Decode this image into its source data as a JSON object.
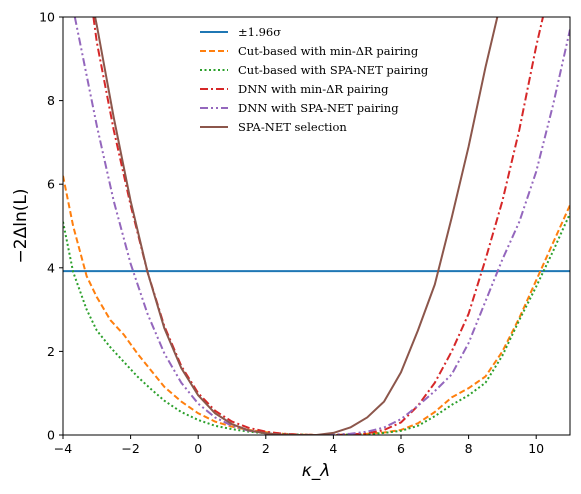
{
  "chart_data": {
    "type": "line",
    "title": "",
    "xlabel": "κ_λ",
    "ylabel": "−2Δln(L)",
    "xlim": [
      -4,
      11
    ],
    "ylim": [
      0,
      10
    ],
    "xticks": [
      "−4",
      "−2",
      "0",
      "2",
      "4",
      "6",
      "8",
      "10"
    ],
    "xtick_values": [
      -4,
      -2,
      0,
      2,
      4,
      6,
      8,
      10
    ],
    "yticks": [
      "0",
      "2",
      "4",
      "6",
      "8",
      "10"
    ],
    "ytick_values": [
      0,
      2,
      4,
      6,
      8,
      10
    ],
    "grid": false,
    "legend_position": "top-center",
    "series": [
      {
        "name": "±1.96σ",
        "color": "#1f77b4",
        "dash": "solid",
        "x": [
          -4,
          11
        ],
        "y": [
          3.92,
          3.92
        ]
      },
      {
        "name": "Cut-based with min-ΔR pairing",
        "color": "#ff7f0e",
        "dash": "dashed",
        "x": [
          -4,
          -3.7,
          -3.3,
          -3.0,
          -2.6,
          -2.2,
          -1.8,
          -1.4,
          -1.0,
          -0.5,
          0,
          0.5,
          1,
          1.5,
          2,
          2.5,
          3,
          3.5,
          4,
          4.5,
          5,
          5.5,
          6,
          6.5,
          7,
          7.5,
          8,
          8.5,
          9,
          9.5,
          10,
          10.5,
          11
        ],
        "y": [
          6.2,
          5.0,
          3.8,
          3.3,
          2.75,
          2.4,
          1.95,
          1.55,
          1.15,
          0.8,
          0.52,
          0.32,
          0.2,
          0.12,
          0.07,
          0.03,
          0.01,
          0.0,
          0.0,
          0.01,
          0.03,
          0.06,
          0.12,
          0.28,
          0.55,
          0.9,
          1.12,
          1.4,
          2.0,
          2.8,
          3.7,
          4.6,
          5.5
        ]
      },
      {
        "name": "Cut-based with SPA-NET pairing",
        "color": "#2ca02c",
        "dash": "dotted",
        "x": [
          -4,
          -3.7,
          -3.3,
          -3.0,
          -2.6,
          -2.2,
          -1.8,
          -1.4,
          -1.0,
          -0.5,
          0,
          0.5,
          1,
          1.5,
          2,
          2.5,
          3,
          3.5,
          4,
          4.5,
          5,
          5.5,
          6,
          6.5,
          7,
          7.5,
          8,
          8.5,
          9,
          9.5,
          10,
          10.5,
          11
        ],
        "y": [
          5.1,
          3.9,
          3.0,
          2.5,
          2.1,
          1.75,
          1.4,
          1.1,
          0.82,
          0.55,
          0.36,
          0.22,
          0.14,
          0.08,
          0.04,
          0.02,
          0.01,
          0.0,
          0.0,
          0.01,
          0.02,
          0.05,
          0.1,
          0.22,
          0.45,
          0.72,
          0.95,
          1.25,
          1.9,
          2.75,
          3.55,
          4.4,
          5.3
        ]
      },
      {
        "name": "DNN with min-ΔR pairing",
        "color": "#d62728",
        "dash": "dashdot",
        "x": [
          -3.1,
          -3.0,
          -2.5,
          -2.0,
          -1.5,
          -1.0,
          -0.5,
          0,
          0.5,
          1,
          1.5,
          2,
          2.5,
          3,
          3.5,
          4,
          4.5,
          5,
          5.5,
          6,
          6.5,
          7,
          7.5,
          8,
          8.5,
          9,
          9.5,
          10,
          10.2
        ],
        "y": [
          10.0,
          9.4,
          7.3,
          5.5,
          3.9,
          2.6,
          1.65,
          1.0,
          0.58,
          0.32,
          0.17,
          0.08,
          0.03,
          0.01,
          0.0,
          0.0,
          0.01,
          0.04,
          0.12,
          0.3,
          0.7,
          1.25,
          2.0,
          2.9,
          4.2,
          5.6,
          7.3,
          9.3,
          10.0
        ]
      },
      {
        "name": "DNN with SPA-NET pairing",
        "color": "#9467bd",
        "dash": "dashdotdot",
        "x": [
          -3.65,
          -3.5,
          -3.0,
          -2.5,
          -2.0,
          -1.5,
          -1.0,
          -0.5,
          0,
          0.5,
          1,
          1.5,
          2,
          2.5,
          3,
          3.5,
          4,
          4.5,
          5,
          5.5,
          6,
          6.5,
          7,
          7.5,
          8,
          8.5,
          9,
          9.5,
          10,
          10.5,
          11
        ],
        "y": [
          10.0,
          9.4,
          7.4,
          5.6,
          4.1,
          2.9,
          1.95,
          1.25,
          0.75,
          0.42,
          0.22,
          0.1,
          0.04,
          0.01,
          0.0,
          0.0,
          0.01,
          0.03,
          0.08,
          0.18,
          0.38,
          0.7,
          1.05,
          1.45,
          2.2,
          3.2,
          4.2,
          5.1,
          6.3,
          7.9,
          9.7
        ]
      },
      {
        "name": "SPA-NET selection",
        "color": "#8c564b",
        "dash": "solid",
        "x": [
          -3.05,
          -3.0,
          -2.5,
          -2.0,
          -1.5,
          -1.0,
          -0.5,
          0,
          0.5,
          1,
          1.5,
          2,
          2.5,
          3,
          3.5,
          4,
          4.5,
          5,
          5.5,
          6,
          6.5,
          7,
          7.5,
          8,
          8.5,
          8.85
        ],
        "y": [
          10.0,
          9.8,
          7.6,
          5.6,
          3.9,
          2.55,
          1.6,
          0.95,
          0.52,
          0.26,
          0.11,
          0.04,
          0.01,
          0.0,
          0.0,
          0.05,
          0.18,
          0.42,
          0.8,
          1.5,
          2.5,
          3.6,
          5.2,
          6.9,
          8.8,
          10.0
        ]
      }
    ]
  },
  "legend": {
    "entries": [
      {
        "label": "±1.96σ"
      },
      {
        "label": "Cut-based with min-ΔR pairing"
      },
      {
        "label": "Cut-based with SPA-NET pairing"
      },
      {
        "label": "DNN with min-ΔR pairing"
      },
      {
        "label": "DNN with SPA-NET pairing"
      },
      {
        "label": "SPA-NET selection"
      }
    ]
  }
}
